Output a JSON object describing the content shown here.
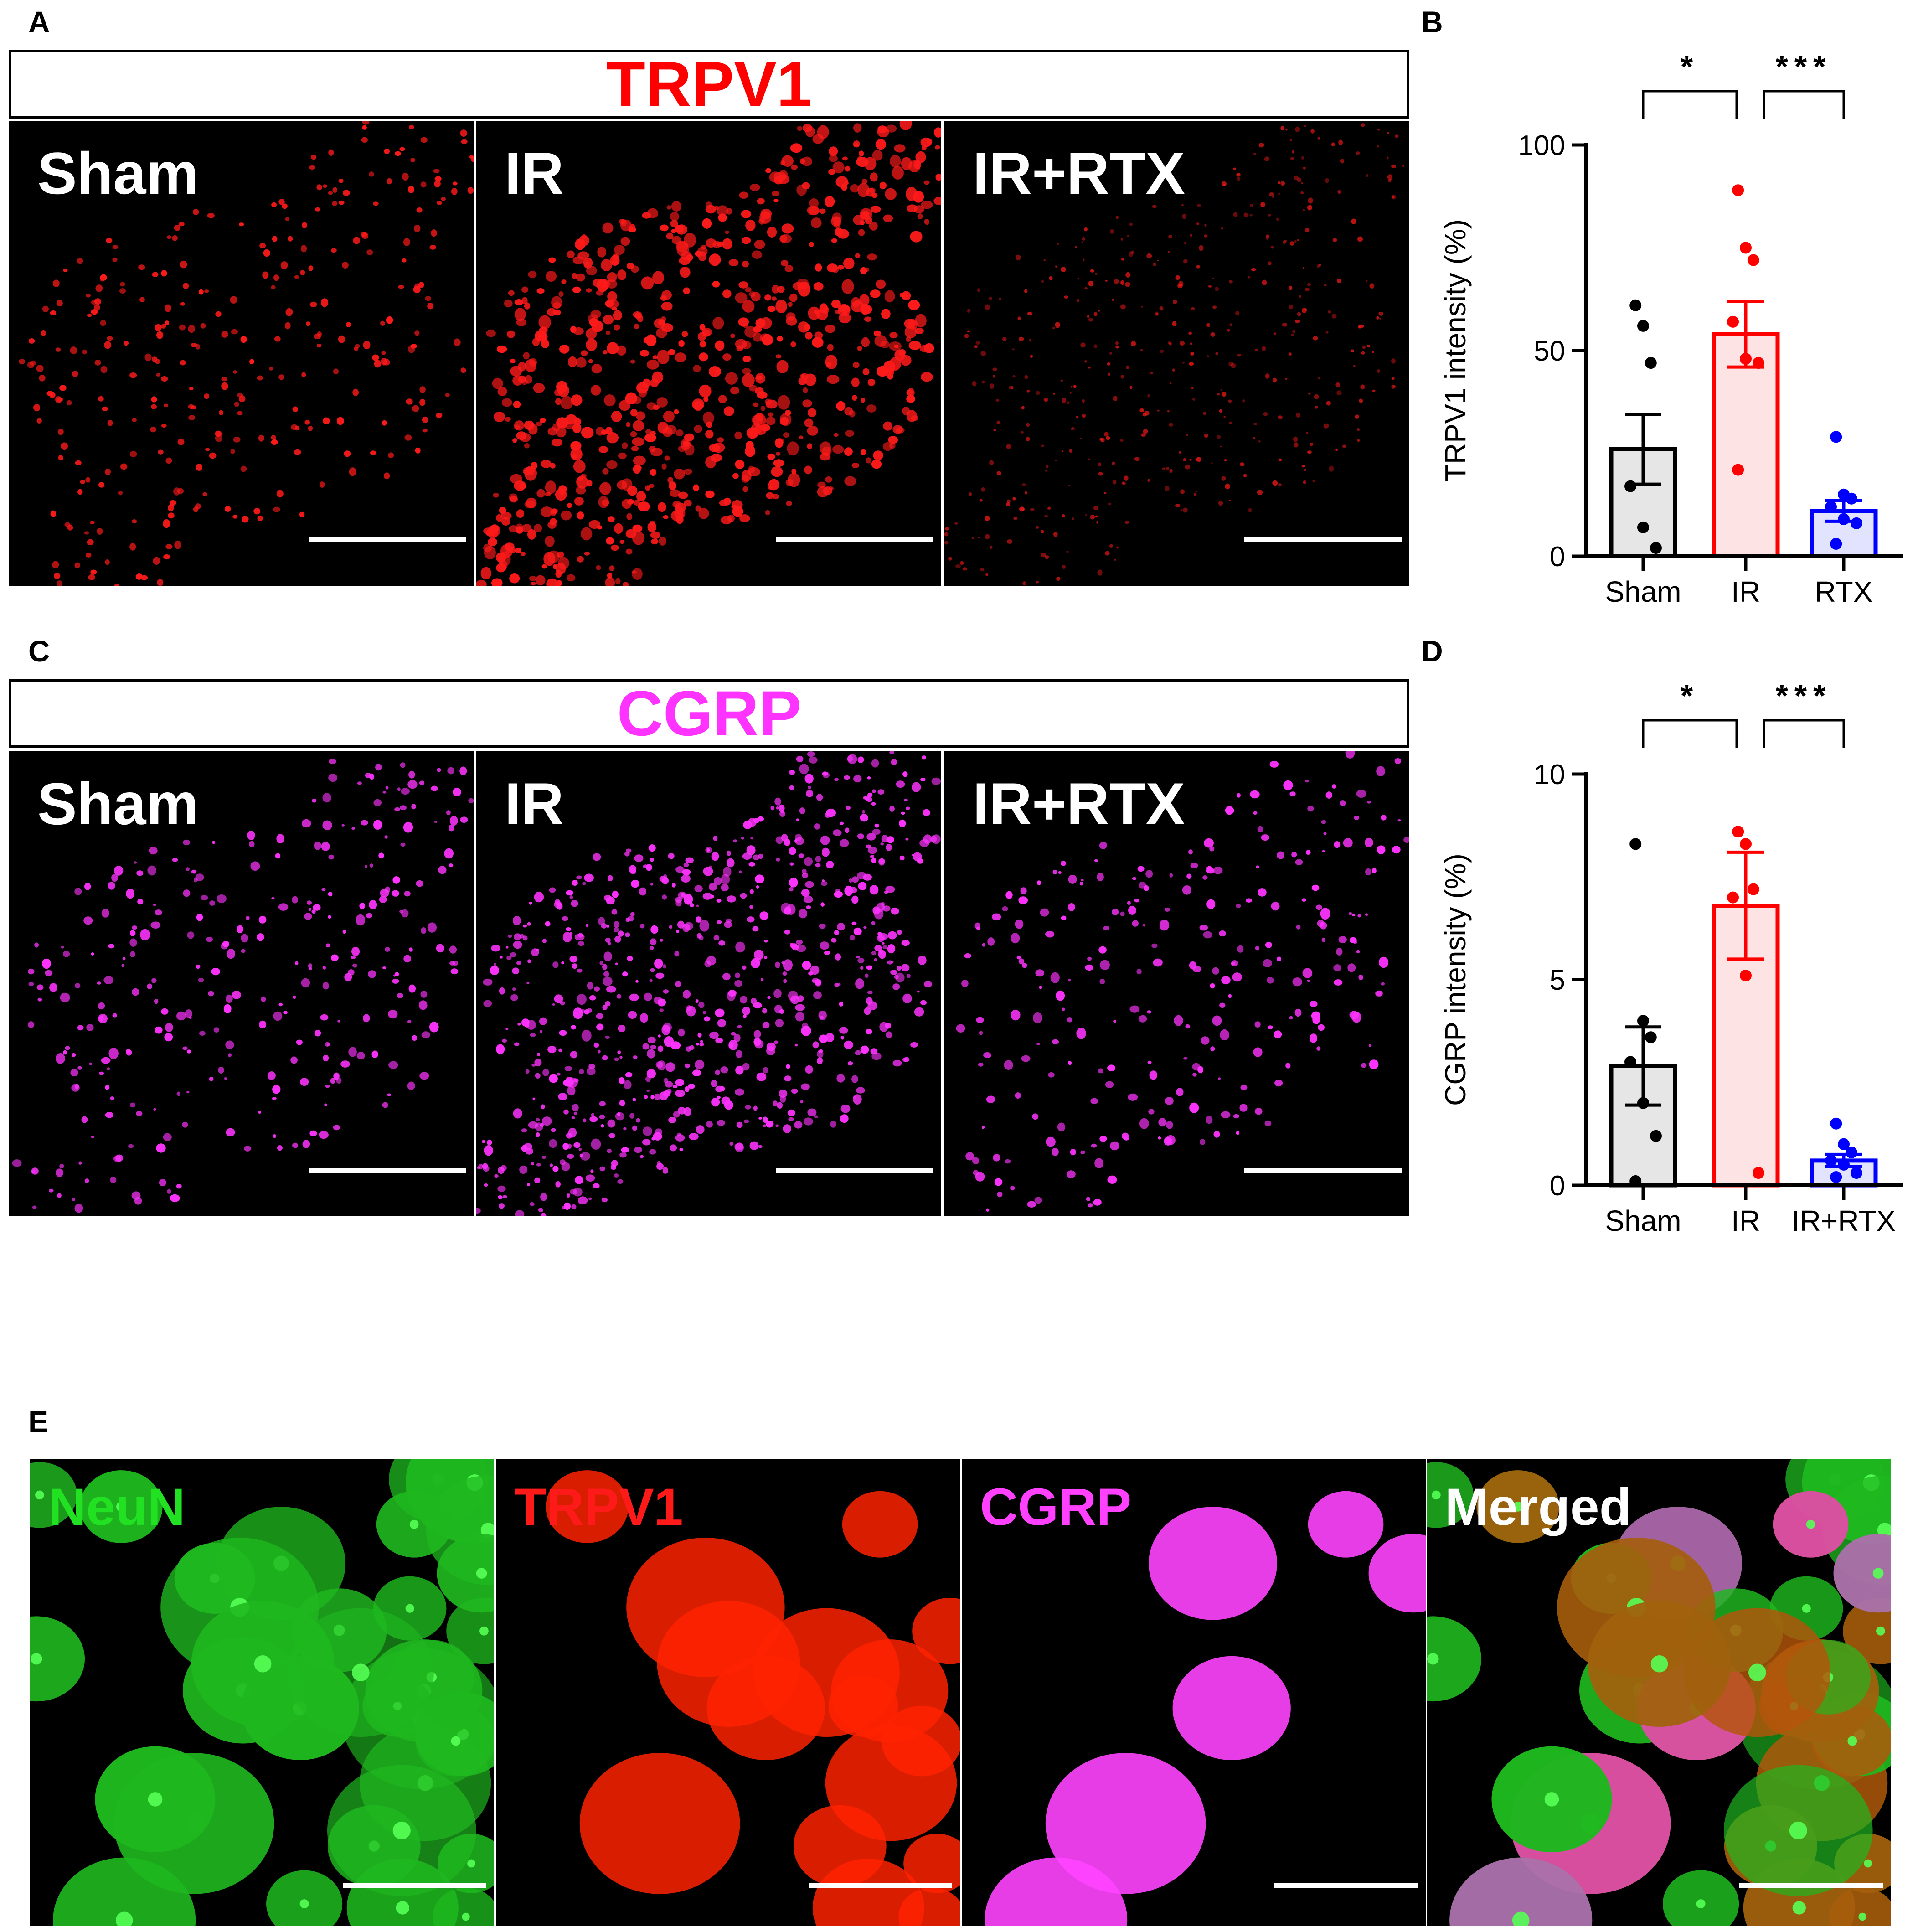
{
  "panels": {
    "A": {
      "letter": "A",
      "title": "TRPV1",
      "title_color": "#ff0000",
      "stain_color": "#ff1a1a",
      "images": [
        {
          "label": "Sham",
          "density": 0.35,
          "style": "blob"
        },
        {
          "label": "IR",
          "density": 1.0,
          "style": "blob"
        },
        {
          "label": "IR+RTX",
          "density": 0.55,
          "style": "mesh"
        }
      ]
    },
    "C": {
      "letter": "C",
      "title": "CGRP",
      "title_color": "#ff33ff",
      "stain_color": "#ff33ff",
      "images": [
        {
          "label": "Sham",
          "density": 0.35,
          "style": "dot"
        },
        {
          "label": "IR",
          "density": 1.0,
          "style": "dot"
        },
        {
          "label": "IR+RTX",
          "density": 0.3,
          "style": "dot"
        }
      ]
    },
    "E": {
      "letter": "E",
      "images": [
        {
          "label": "NeuN",
          "label_color": "#22e022",
          "kind": "neun"
        },
        {
          "label": "TRPV1",
          "label_color": "#ff1a1a",
          "kind": "trpv1"
        },
        {
          "label": "CGRP",
          "label_color": "#ff40ff",
          "kind": "cgrp"
        },
        {
          "label": "Merged",
          "label_color": "#ffffff",
          "kind": "merged"
        }
      ]
    }
  },
  "chart_data": [
    {
      "panel": "B",
      "type": "bar",
      "ylabel": "TRPV1 intensity (%)",
      "categories": [
        "Sham",
        "IR",
        "RTX"
      ],
      "ylim": [
        0,
        100
      ],
      "yticks": [
        0,
        50,
        100
      ],
      "means": [
        26,
        54,
        11
      ],
      "sem": [
        8.5,
        8,
        2.5
      ],
      "colors": [
        "#000000",
        "#ff0000",
        "#0000ff"
      ],
      "fills": [
        "#e6e6e6",
        "#fde3e3",
        "#e2e4ff"
      ],
      "points": [
        [
          61,
          56,
          47,
          17,
          7,
          2
        ],
        [
          89,
          75,
          72,
          57,
          48,
          47,
          21
        ],
        [
          29,
          15,
          14,
          12,
          9,
          8,
          3
        ]
      ],
      "significance": [
        {
          "from": 0,
          "to": 1,
          "label": "*"
        },
        {
          "from": 1,
          "to": 2,
          "label": "***"
        }
      ]
    },
    {
      "panel": "D",
      "type": "bar",
      "ylabel": "CGRP intensity (%)",
      "categories": [
        "Sham",
        "IR",
        "IR+RTX"
      ],
      "ylim": [
        0,
        10
      ],
      "yticks": [
        0,
        5,
        10
      ],
      "means": [
        2.9,
        6.8,
        0.6
      ],
      "sem": [
        0.95,
        1.3,
        0.15
      ],
      "colors": [
        "#000000",
        "#ff0000",
        "#0000ff"
      ],
      "fills": [
        "#e6e6e6",
        "#fde3e3",
        "#e2e4ff"
      ],
      "points": [
        [
          8.3,
          4.0,
          3.6,
          3.0,
          2.0,
          1.2,
          0.1
        ],
        [
          8.6,
          8.3,
          7.2,
          7.0,
          5.1,
          0.3
        ],
        [
          1.5,
          1.0,
          0.8,
          0.6,
          0.5,
          0.3,
          0.2
        ]
      ],
      "significance": [
        {
          "from": 0,
          "to": 1,
          "label": "*"
        },
        {
          "from": 1,
          "to": 2,
          "label": "***"
        }
      ]
    }
  ]
}
